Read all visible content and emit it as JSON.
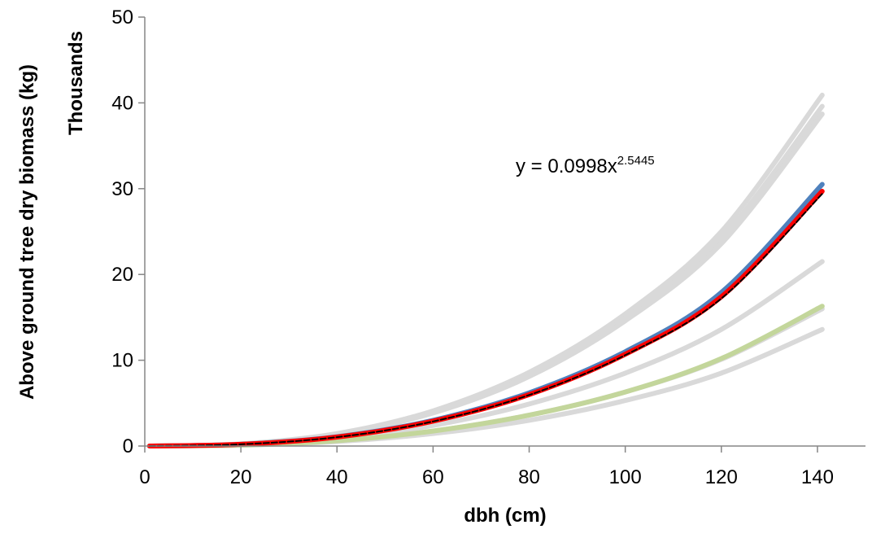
{
  "chart_data": {
    "type": "line",
    "title": "",
    "xlabel": "dbh (cm)",
    "ylabel": "Above ground tree dry biomass (kg)",
    "y_units_label": "Thousands",
    "xlim": [
      0,
      150
    ],
    "ylim": [
      0,
      50
    ],
    "x_ticks": [
      "0",
      "20",
      "40",
      "60",
      "80",
      "100",
      "120",
      "140"
    ],
    "y_ticks": [
      "0",
      "10",
      "20",
      "30",
      "40",
      "50"
    ],
    "x_tick_values": [
      0,
      20,
      40,
      60,
      80,
      100,
      120,
      140
    ],
    "y_tick_values": [
      0,
      10,
      20,
      30,
      40,
      50
    ],
    "grid": false,
    "legend": "none",
    "annotation": {
      "text_base": "y = 0.0998x",
      "text_exponent": "2.5445"
    },
    "x": [
      1,
      20,
      40,
      60,
      80,
      100,
      120,
      141
    ],
    "series": [
      {
        "color": "#d9d9d9",
        "values": [
          0.0,
          0.25,
          1.45,
          4.1,
          8.6,
          15.4,
          25.0,
          40.9
        ]
      },
      {
        "color": "#d9d9d9",
        "values": [
          0.0,
          0.24,
          1.4,
          3.95,
          8.3,
          14.9,
          24.2,
          39.6
        ]
      },
      {
        "color": "#d9d9d9",
        "values": [
          0.0,
          0.23,
          1.35,
          3.85,
          8.1,
          14.6,
          23.6,
          38.7
        ]
      },
      {
        "color": "#d9d9d9",
        "values": [
          0.0,
          0.15,
          0.85,
          2.4,
          4.9,
          8.5,
          13.6,
          21.5
        ]
      },
      {
        "color": "#d9d9d9",
        "values": [
          0.0,
          0.11,
          0.62,
          1.75,
          3.6,
          6.3,
          10.1,
          16.0
        ]
      },
      {
        "color": "#d9d9d9",
        "values": [
          0.0,
          0.09,
          0.52,
          1.45,
          3.0,
          5.3,
          8.5,
          13.6
        ]
      },
      {
        "color": "#4f81bd",
        "values": [
          0.0,
          0.2,
          1.08,
          3.0,
          6.2,
          11.0,
          17.9,
          30.5
        ]
      },
      {
        "color": "#c3d69b",
        "values": [
          0.0,
          0.11,
          0.62,
          1.75,
          3.6,
          6.3,
          10.2,
          16.3
        ]
      },
      {
        "color": "#ff0000",
        "values": [
          0.0,
          0.2,
          1.04,
          2.9,
          6.0,
          10.7,
          17.4,
          29.7
        ]
      },
      {
        "color": "#000000",
        "values": [
          0.0,
          0.2,
          1.03,
          2.87,
          5.95,
          10.6,
          17.2,
          29.4
        ]
      }
    ]
  }
}
